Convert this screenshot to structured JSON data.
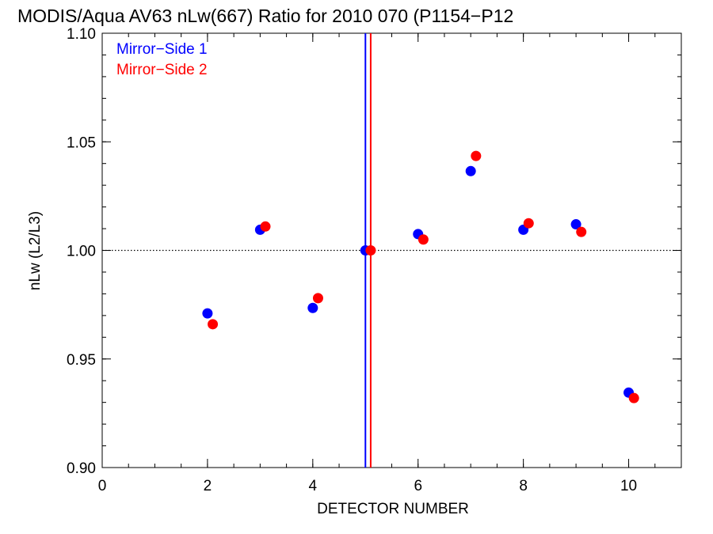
{
  "chart_data": {
    "type": "scatter",
    "title": "MODIS/Aqua AV63 nLw(667) Ratio for 2010 070 (P1154−P12",
    "xlabel": "DETECTOR NUMBER",
    "ylabel": "nLw (L2/L3)",
    "xlim": [
      0,
      11
    ],
    "ylim": [
      0.9,
      1.1
    ],
    "x_ticks": [
      0,
      2,
      4,
      6,
      8,
      10
    ],
    "x_tick_labels": [
      "0",
      "2",
      "4",
      "6",
      "8",
      "10"
    ],
    "x_minor_step": 0.5,
    "y_ticks": [
      0.9,
      0.95,
      1.0,
      1.05,
      1.1
    ],
    "y_tick_labels": [
      "0.90",
      "0.95",
      "1.00",
      "1.05",
      "1.10"
    ],
    "y_minor_step": 0.01,
    "reference_line_y": 1.0,
    "legend_position": "top-left",
    "series": [
      {
        "name": "Mirror−Side 1",
        "color": "#0000ff",
        "vline_x": 5.0,
        "x": [
          2,
          3,
          4,
          5,
          6,
          7,
          8,
          9,
          10
        ],
        "y": [
          0.971,
          1.0095,
          0.9735,
          1.0,
          1.0075,
          1.0365,
          1.0095,
          1.012,
          0.9345
        ]
      },
      {
        "name": "Mirror−Side 2",
        "color": "#ff0000",
        "vline_x": 5.1,
        "x": [
          2.1,
          3.1,
          4.1,
          5.1,
          6.1,
          7.1,
          8.1,
          9.1,
          10.1
        ],
        "y": [
          0.966,
          1.011,
          0.978,
          1.0,
          1.005,
          1.0435,
          1.0125,
          1.0085,
          0.932
        ]
      }
    ]
  }
}
